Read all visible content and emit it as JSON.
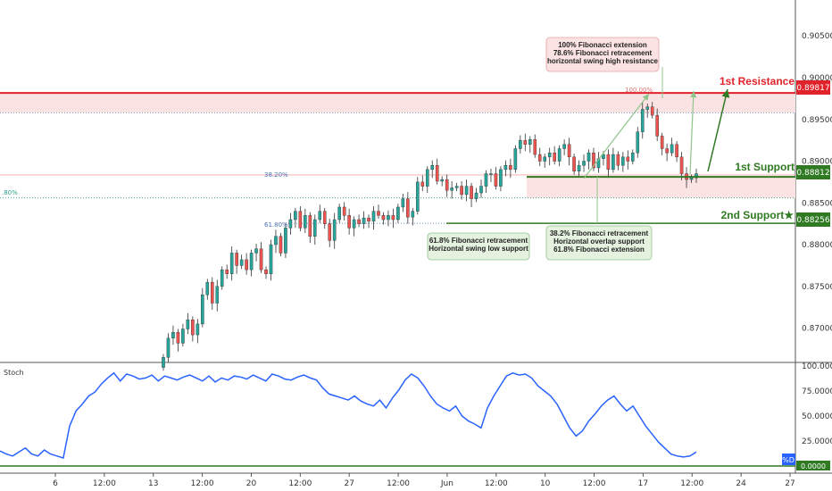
{
  "chart_data": [
    {
      "type": "candlestick",
      "panel": "price",
      "y_ticks": [
        "0.90500",
        "0.90000",
        "0.89500",
        "0.89000",
        "0.88500",
        "0.88000",
        "0.87500",
        "0.87000"
      ],
      "ylim": [
        0.866,
        0.9093
      ],
      "levels": {
        "resistance": {
          "label": "1st Resistance",
          "value": 0.89817,
          "value_label": "0.89817",
          "color": "#e0222a"
        },
        "support1": {
          "label": "1st Support",
          "value": 0.88812,
          "value_label": "0.88812",
          "color": "#2f7a22"
        },
        "support2": {
          "label": "2nd Support★",
          "value": 0.88256,
          "value_label": "0.88256",
          "color": "#2f7a22"
        }
      },
      "fib_labels": {
        "f382": "38.20%",
        "f618": "61.80%",
        "f100": "100.00%",
        "left_fragment": ".80%"
      },
      "annotations": {
        "resistance_note": [
          "100% Fibonacci extension",
          "78.6% Fibonacci retracement",
          "horizontal swing high resistance"
        ],
        "support1_note": [
          "38.2% Fibonacci retracement",
          "Horizontal overlap support",
          "61.8% Fibonacci extension"
        ],
        "support2_note": [
          "61.8% Fibonacci retracement",
          "Horizontal swing low support"
        ]
      },
      "closes": [
        0.8665,
        0.8688,
        0.8695,
        0.8682,
        0.8699,
        0.871,
        0.8692,
        0.8705,
        0.874,
        0.8755,
        0.873,
        0.875,
        0.877,
        0.8765,
        0.879,
        0.8775,
        0.8782,
        0.877,
        0.879,
        0.8795,
        0.877,
        0.8765,
        0.88,
        0.881,
        0.879,
        0.882,
        0.883,
        0.884,
        0.882,
        0.8835,
        0.881,
        0.883,
        0.884,
        0.8825,
        0.8805,
        0.883,
        0.8845,
        0.8835,
        0.882,
        0.883,
        0.8825,
        0.8832,
        0.8828,
        0.884,
        0.8835,
        0.883,
        0.8835,
        0.883,
        0.8845,
        0.8855,
        0.8833,
        0.884,
        0.8875,
        0.887,
        0.889,
        0.8895,
        0.8876,
        0.8878,
        0.8865,
        0.8868,
        0.887,
        0.886,
        0.887,
        0.8855,
        0.8862,
        0.887,
        0.8885,
        0.8885,
        0.887,
        0.889,
        0.8895,
        0.889,
        0.8915,
        0.8925,
        0.892,
        0.8926,
        0.8908,
        0.89,
        0.8905,
        0.891,
        0.89,
        0.8915,
        0.892,
        0.8905,
        0.8888,
        0.8895,
        0.89,
        0.891,
        0.8892,
        0.8903,
        0.8908,
        0.889,
        0.8908,
        0.8895,
        0.8905,
        0.89,
        0.891,
        0.8935,
        0.8962,
        0.8965,
        0.8955,
        0.893,
        0.8915,
        0.891,
        0.892,
        0.8905,
        0.8885,
        0.8878,
        0.888,
        0.8885
      ]
    },
    {
      "type": "line",
      "panel": "indicator",
      "title": "Stoch",
      "legend": "%D",
      "y_ticks": [
        "100.0000",
        "75.0000",
        "50.0000",
        "25.0000"
      ],
      "ylim": [
        0,
        100
      ],
      "ref_level": 0,
      "ref_label": "0.0000",
      "line_color": "#2962ff",
      "values": [
        15,
        12,
        10,
        14,
        18,
        12,
        10,
        16,
        12,
        10,
        8,
        40,
        55,
        62,
        70,
        74,
        82,
        88,
        93,
        85,
        92,
        90,
        87,
        88,
        91,
        85,
        90,
        88,
        86,
        89,
        91,
        88,
        85,
        90,
        84,
        88,
        86,
        90,
        89,
        87,
        91,
        88,
        85,
        92,
        90,
        87,
        86,
        89,
        91,
        88,
        86,
        78,
        72,
        70,
        68,
        66,
        70,
        65,
        62,
        60,
        66,
        58,
        68,
        76,
        86,
        92,
        88,
        80,
        70,
        62,
        58,
        55,
        60,
        50,
        45,
        42,
        38,
        58,
        70,
        80,
        90,
        93,
        91,
        92,
        88,
        80,
        75,
        70,
        62,
        50,
        38,
        30,
        35,
        45,
        52,
        60,
        66,
        70,
        62,
        55,
        60,
        50,
        40,
        32,
        24,
        18,
        12,
        10,
        9,
        10,
        14
      ]
    },
    {
      "type": "axis",
      "panel": "x-axis",
      "x_ticks": [
        "6",
        "12:00",
        "13",
        "12:00",
        "20",
        "12:00",
        "27",
        "12:00",
        "Jun",
        "12:00",
        "10",
        "12:00",
        "17",
        "12:00",
        "24",
        "27"
      ]
    }
  ]
}
